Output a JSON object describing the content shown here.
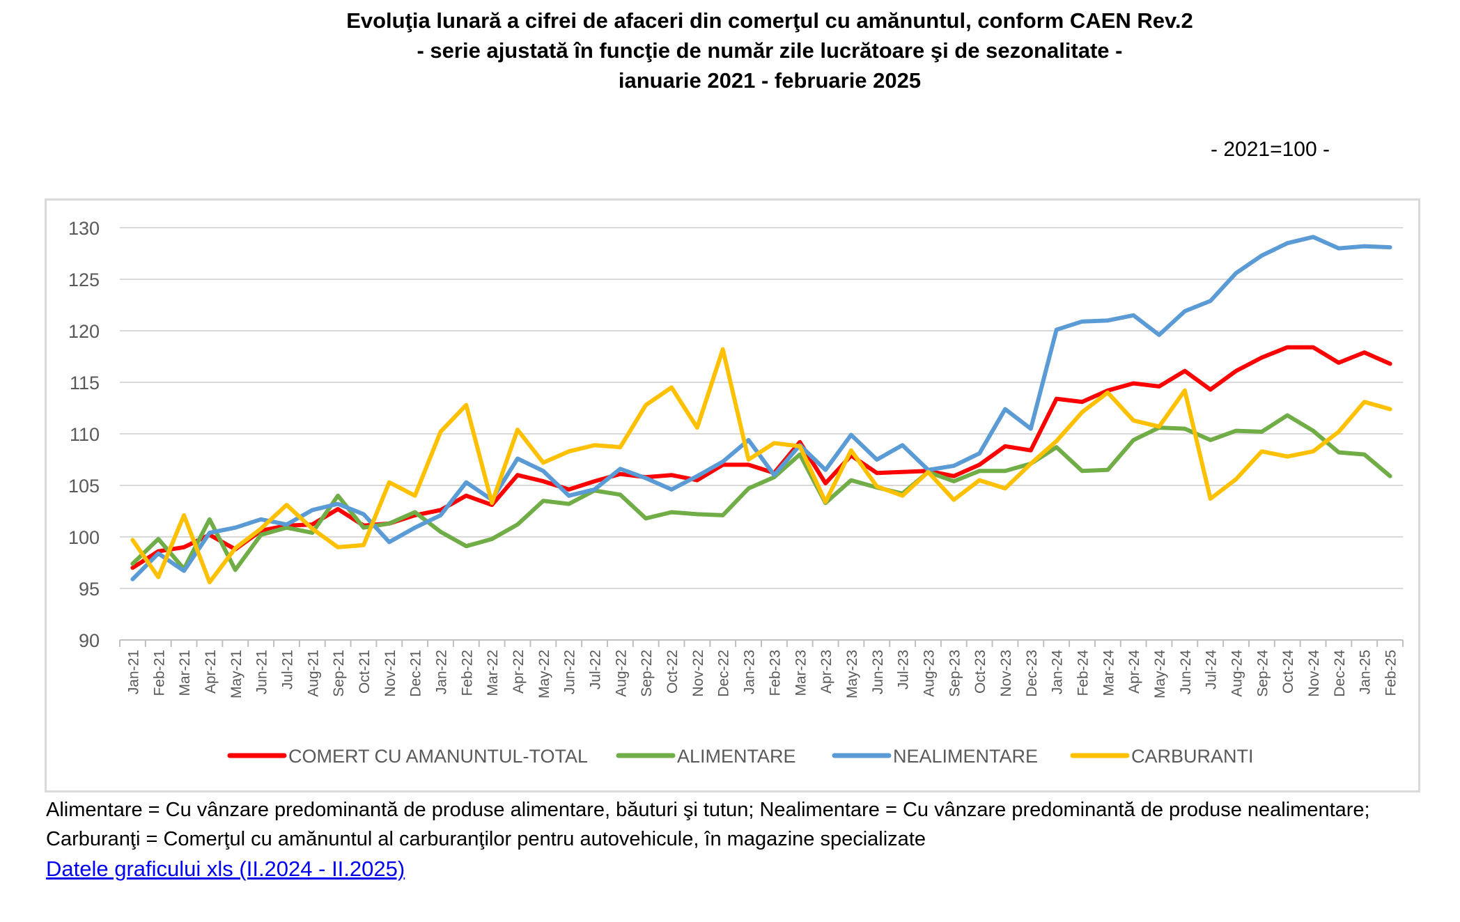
{
  "header": {
    "title_lines": [
      "Evoluţia lunară a cifrei de afaceri din comerţul cu amănuntul, conform CAEN Rev.2",
      "- serie ajustată în funcţie de număr zile lucrătoare şi de sezonalitate -",
      "ianuarie 2021 - februarie 2025"
    ],
    "unit": "- 2021=100 -"
  },
  "footer": {
    "note": "Alimentare = Cu vânzare predominantă de produse alimentare, băuturi şi tutun; Nealimentare = Cu vânzare predominantă de produse nealimentare; Carburanţi = Comerţul cu amănuntul al carburanţilor pentru autovehicule, în magazine specializate",
    "link_text": "Datele graficului xls (II.2024 - II.2025)"
  },
  "chart_data": {
    "type": "line",
    "title": "Evoluţia lunară a cifrei de afaceri din comerţul cu amănuntul, conform CAEN Rev.2",
    "ylim": [
      90,
      130
    ],
    "yticks": [
      90,
      95,
      100,
      105,
      110,
      115,
      120,
      125,
      130
    ],
    "grid": true,
    "legend_position": "bottom",
    "categories": [
      "Jan-21",
      "Feb-21",
      "Mar-21",
      "Apr-21",
      "May-21",
      "Jun-21",
      "Jul-21",
      "Aug-21",
      "Sep-21",
      "Oct-21",
      "Nov-21",
      "Dec-21",
      "Jan-22",
      "Feb-22",
      "Mar-22",
      "Apr-22",
      "May-22",
      "Jun-22",
      "Jul-22",
      "Aug-22",
      "Sep-22",
      "Oct-22",
      "Nov-22",
      "Dec-22",
      "Jan-23",
      "Feb-23",
      "Mar-23",
      "Apr-23",
      "May-23",
      "Jun-23",
      "Jul-23",
      "Aug-23",
      "Sep-23",
      "Oct-23",
      "Nov-23",
      "Dec-23",
      "Jan-24",
      "Feb-24",
      "Mar-24",
      "Apr-24",
      "May-24",
      "Jun-24",
      "Jul-24",
      "Aug-24",
      "Sep-24",
      "Oct-24",
      "Nov-24",
      "Dec-24",
      "Jan-25",
      "Feb-25"
    ],
    "series": [
      {
        "name": "COMERT CU AMANUNTUL-TOTAL",
        "color": "#ff0000",
        "values": [
          97.0,
          98.6,
          99.0,
          100.2,
          98.8,
          100.6,
          101.1,
          101.2,
          102.7,
          101.1,
          101.3,
          102.1,
          102.6,
          104.0,
          103.1,
          106.0,
          105.4,
          104.6,
          105.4,
          106.1,
          105.8,
          106.0,
          105.5,
          107.0,
          107.0,
          106.2,
          109.2,
          105.2,
          107.9,
          106.2,
          106.3,
          106.4,
          105.9,
          107.0,
          108.8,
          108.4,
          113.4,
          113.1,
          114.2,
          114.9,
          114.6,
          116.1,
          114.3,
          116.1,
          117.4,
          118.4,
          118.4,
          116.9,
          117.9,
          116.8
        ]
      },
      {
        "name": "ALIMENTARE",
        "color": "#70ad47",
        "values": [
          97.4,
          99.8,
          96.9,
          101.7,
          96.8,
          100.2,
          100.9,
          100.4,
          104.0,
          100.9,
          101.3,
          102.4,
          100.5,
          99.1,
          99.8,
          101.2,
          103.5,
          103.2,
          104.5,
          104.1,
          101.8,
          102.4,
          102.2,
          102.1,
          104.7,
          105.8,
          108.0,
          103.3,
          105.5,
          104.8,
          104.2,
          106.3,
          105.4,
          106.4,
          106.4,
          107.1,
          108.7,
          106.4,
          106.5,
          109.4,
          110.6,
          110.5,
          109.4,
          110.3,
          110.2,
          111.8,
          110.3,
          108.2,
          108.0,
          105.9
        ]
      },
      {
        "name": "NEALIMENTARE",
        "color": "#5b9bd5",
        "values": [
          95.9,
          98.4,
          96.7,
          100.4,
          100.9,
          101.7,
          101.2,
          102.6,
          103.2,
          102.2,
          99.5,
          100.9,
          102.1,
          105.3,
          103.6,
          107.6,
          106.4,
          104.0,
          104.6,
          106.6,
          105.7,
          104.6,
          105.9,
          107.3,
          109.4,
          106.0,
          108.9,
          106.5,
          109.9,
          107.5,
          108.9,
          106.5,
          106.9,
          108.1,
          112.4,
          110.5,
          120.1,
          120.9,
          121.0,
          121.5,
          119.6,
          121.9,
          122.9,
          125.6,
          127.3,
          128.5,
          129.1,
          128.0,
          128.2,
          128.1
        ]
      },
      {
        "name": "CARBURANTI",
        "color": "#ffc000",
        "values": [
          99.7,
          96.1,
          102.1,
          95.6,
          98.9,
          100.8,
          103.1,
          100.8,
          99.0,
          99.2,
          105.3,
          104.0,
          110.2,
          112.8,
          103.3,
          110.4,
          107.2,
          108.3,
          108.9,
          108.7,
          112.8,
          114.5,
          110.6,
          118.2,
          107.5,
          109.1,
          108.8,
          103.4,
          108.4,
          104.9,
          104.0,
          106.3,
          103.6,
          105.5,
          104.7,
          107.1,
          109.3,
          112.1,
          114.0,
          111.3,
          110.7,
          114.2,
          103.7,
          105.6,
          108.3,
          107.8,
          108.3,
          110.2,
          113.1,
          112.4
        ]
      }
    ]
  }
}
